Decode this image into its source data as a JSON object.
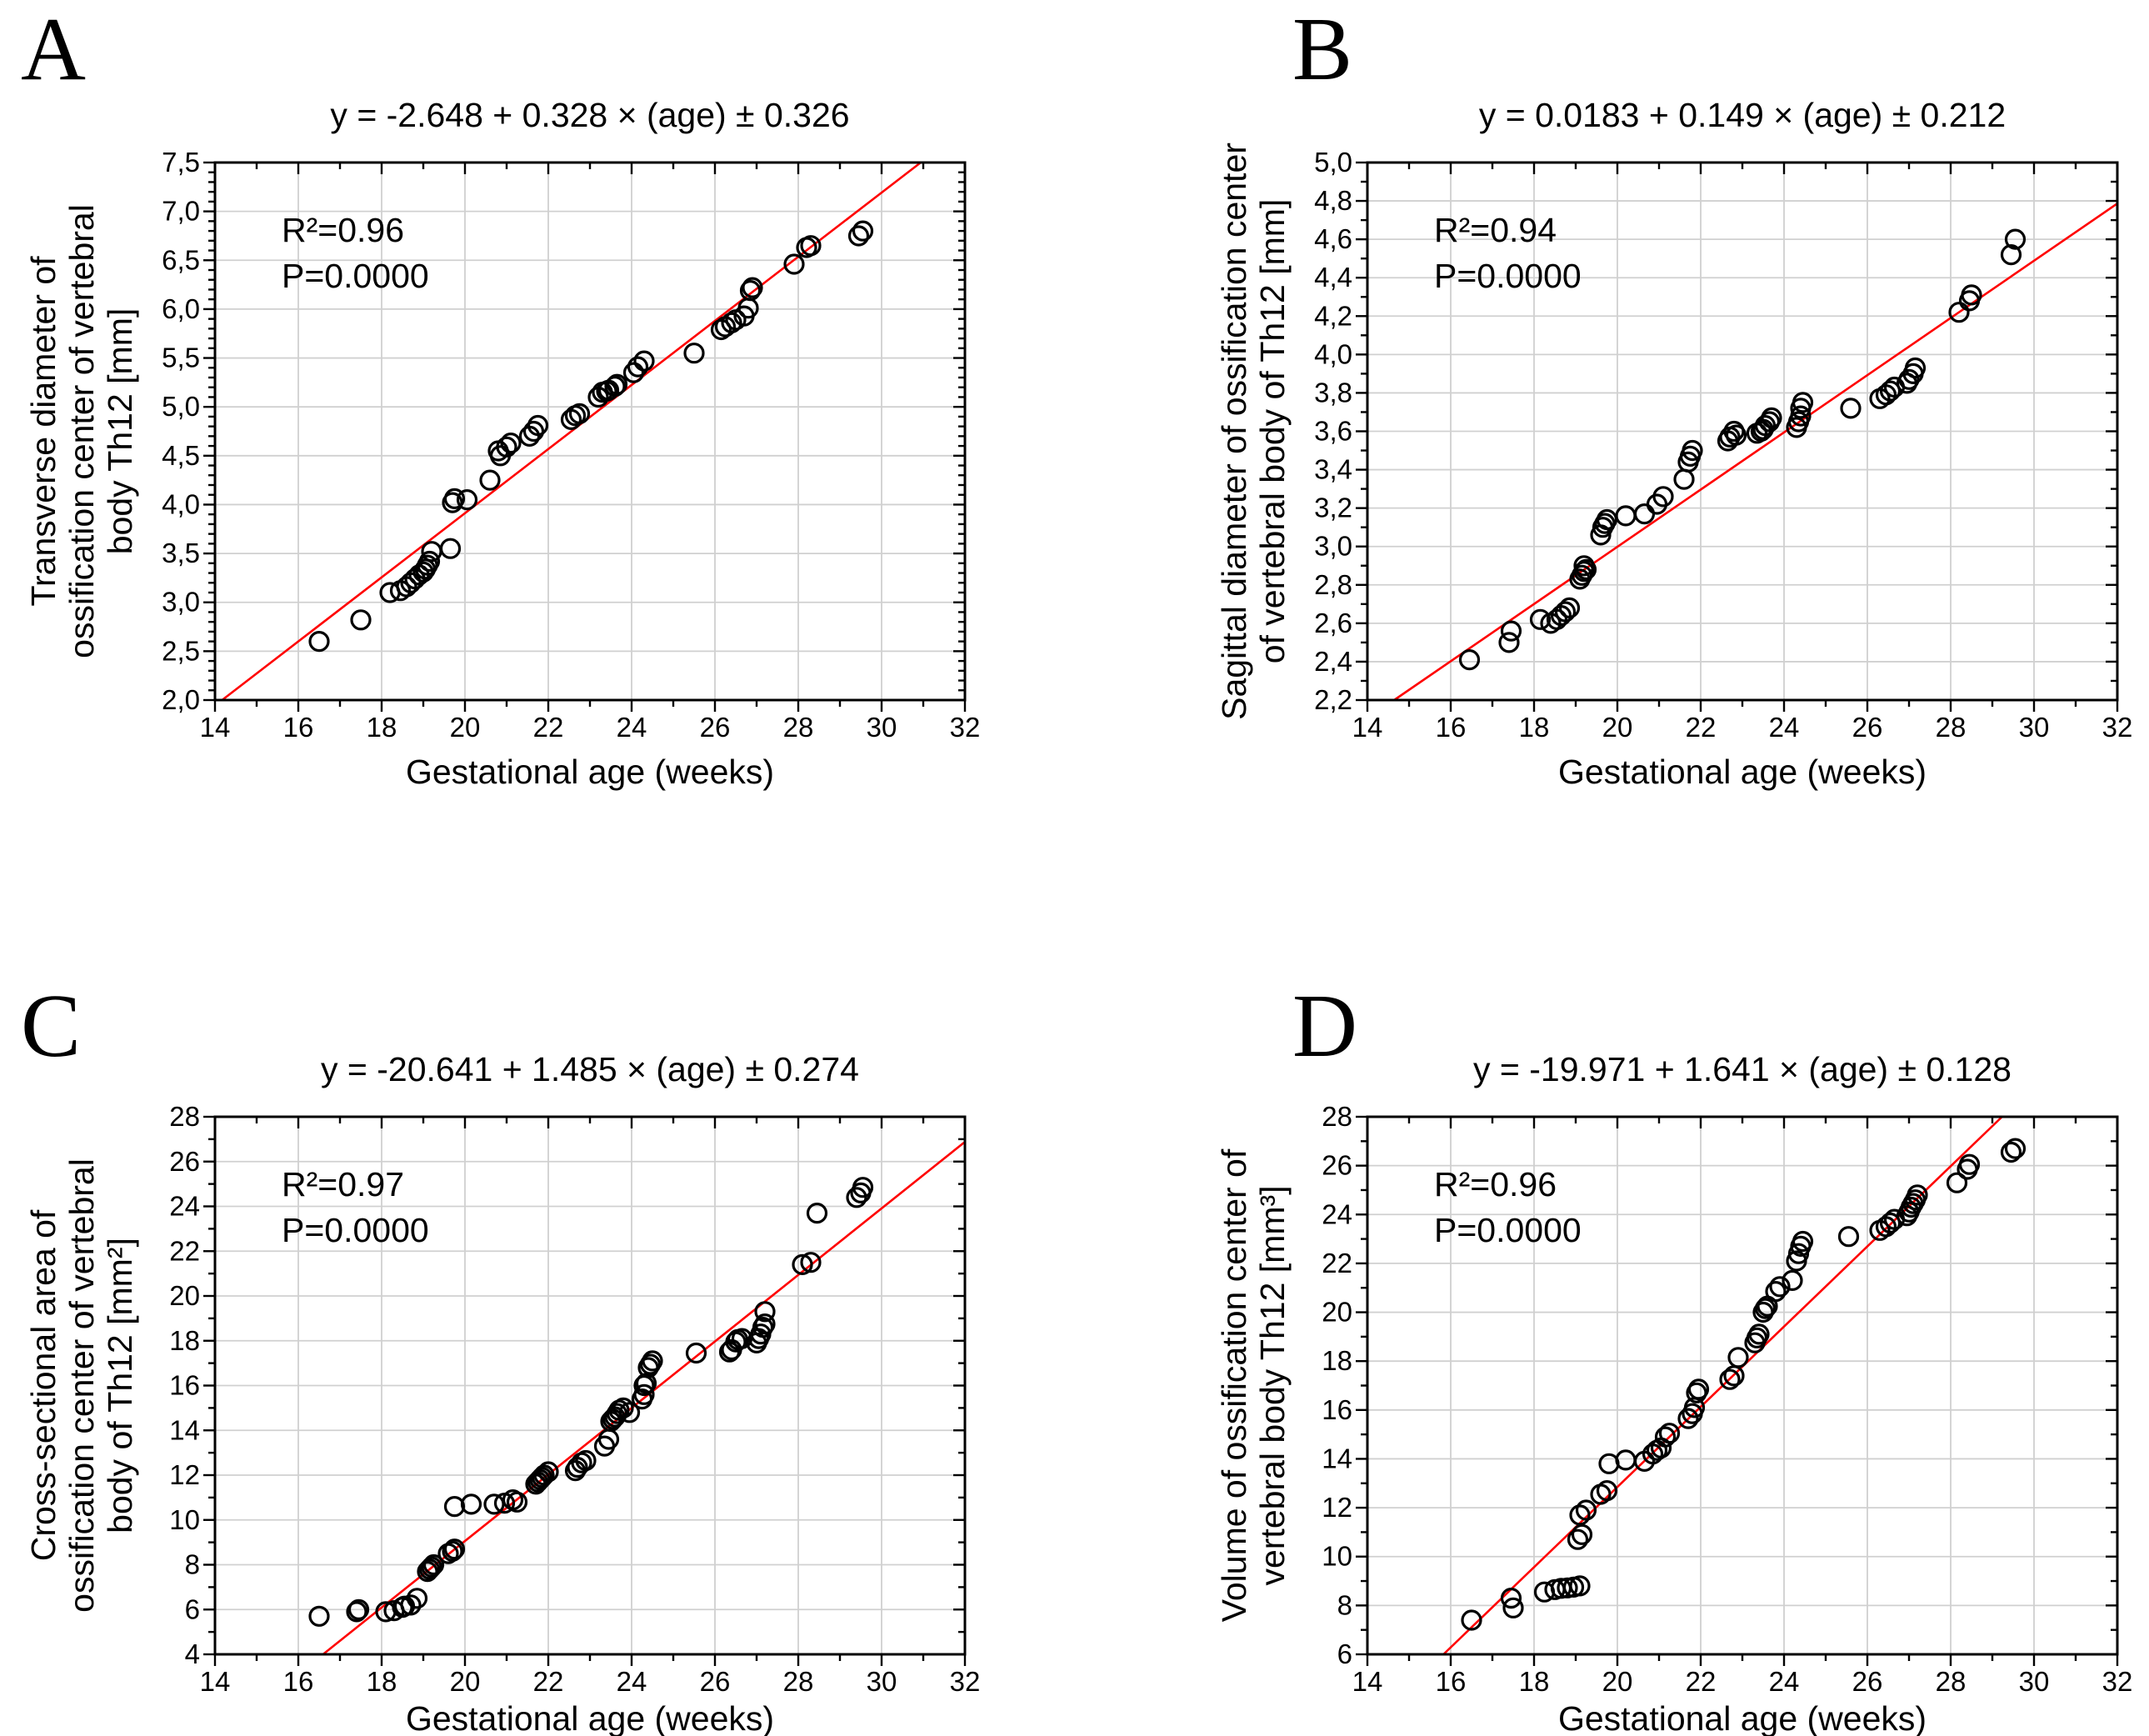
{
  "figure": {
    "background": "#ffffff",
    "panel_order": [
      "A",
      "B",
      "C",
      "D"
    ]
  },
  "colors": {
    "regression_line": "#ff0000",
    "marker_stroke": "#000000",
    "grid": "#d0d0d0",
    "axis": "#000000",
    "text": "#000000"
  },
  "chart_data": [
    {
      "panel_label": "A",
      "type": "scatter",
      "title": "y = -2.648 + 0.328 × (age) ± 0.326",
      "r2_label": "R²=0.96",
      "p_label": "P=0.0000",
      "xlabel": "Gestational age (weeks)",
      "ylabel_lines": [
        "Transverse diameter of",
        "ossification center of vertebral",
        "body Th12 [mm]"
      ],
      "xlim": [
        14,
        32
      ],
      "ylim": [
        2.0,
        7.5
      ],
      "xtick_values": [
        14,
        16,
        18,
        20,
        22,
        24,
        26,
        28,
        30,
        32
      ],
      "xtick_labels": [
        "14",
        "16",
        "18",
        "20",
        "22",
        "24",
        "26",
        "28",
        "30",
        "32"
      ],
      "ytick_values": [
        2.0,
        2.5,
        3.0,
        3.5,
        4.0,
        4.5,
        5.0,
        5.5,
        6.0,
        6.5,
        7.0,
        7.5
      ],
      "ytick_labels": [
        "2,0",
        "2,5",
        "3,0",
        "3,5",
        "4,0",
        "4,5",
        "5,0",
        "5,5",
        "6,0",
        "6,5",
        "7,0",
        "7,5"
      ],
      "x_minor_step": 1,
      "y_minor_step": 0.1,
      "grid": true,
      "legend": null,
      "regression": {
        "intercept": -2.648,
        "slope": 0.328
      },
      "points": [
        [
          16.5,
          2.6
        ],
        [
          17.5,
          2.82
        ],
        [
          18.2,
          3.1
        ],
        [
          18.45,
          3.12
        ],
        [
          18.6,
          3.16
        ],
        [
          18.7,
          3.2
        ],
        [
          18.8,
          3.24
        ],
        [
          18.9,
          3.28
        ],
        [
          19.0,
          3.31
        ],
        [
          19.05,
          3.34
        ],
        [
          19.1,
          3.38
        ],
        [
          19.15,
          3.42
        ],
        [
          19.2,
          3.52
        ],
        [
          19.65,
          3.55
        ],
        [
          19.7,
          4.02
        ],
        [
          19.75,
          4.06
        ],
        [
          20.05,
          4.05
        ],
        [
          20.6,
          4.25
        ],
        [
          20.8,
          4.55
        ],
        [
          20.85,
          4.5
        ],
        [
          21.0,
          4.59
        ],
        [
          21.1,
          4.63
        ],
        [
          21.55,
          4.7
        ],
        [
          21.65,
          4.75
        ],
        [
          21.75,
          4.81
        ],
        [
          22.55,
          4.87
        ],
        [
          22.65,
          4.91
        ],
        [
          22.75,
          4.93
        ],
        [
          23.2,
          5.1
        ],
        [
          23.3,
          5.15
        ],
        [
          23.4,
          5.16
        ],
        [
          23.45,
          5.17
        ],
        [
          23.6,
          5.21
        ],
        [
          23.65,
          5.23
        ],
        [
          24.05,
          5.35
        ],
        [
          24.15,
          5.41
        ],
        [
          24.3,
          5.47
        ],
        [
          25.5,
          5.55
        ],
        [
          26.15,
          5.79
        ],
        [
          26.25,
          5.82
        ],
        [
          26.4,
          5.86
        ],
        [
          26.5,
          5.89
        ],
        [
          26.7,
          5.93
        ],
        [
          26.8,
          6.01
        ],
        [
          26.85,
          6.19
        ],
        [
          26.9,
          6.22
        ],
        [
          27.9,
          6.46
        ],
        [
          28.2,
          6.63
        ],
        [
          28.3,
          6.65
        ],
        [
          29.45,
          6.75
        ],
        [
          29.55,
          6.8
        ]
      ]
    },
    {
      "panel_label": "B",
      "type": "scatter",
      "title": "y = 0.0183 + 0.149 × (age) ± 0.212",
      "r2_label": "R²=0.94",
      "p_label": "P=0.0000",
      "xlabel": "Gestational age (weeks)",
      "ylabel_lines": [
        "Sagittal diameter of ossification center",
        "of vertebral body of Th12 [mm]"
      ],
      "xlim": [
        14,
        32
      ],
      "ylim": [
        2.2,
        5.0
      ],
      "xtick_values": [
        14,
        16,
        18,
        20,
        22,
        24,
        26,
        28,
        30,
        32
      ],
      "xtick_labels": [
        "14",
        "16",
        "18",
        "20",
        "22",
        "24",
        "26",
        "28",
        "30",
        "32"
      ],
      "ytick_values": [
        2.2,
        2.4,
        2.6,
        2.8,
        3.0,
        3.2,
        3.4,
        3.6,
        3.8,
        4.0,
        4.2,
        4.4,
        4.6,
        4.8,
        5.0
      ],
      "ytick_labels": [
        "2,2",
        "2,4",
        "2,6",
        "2,8",
        "3,0",
        "3,2",
        "3,4",
        "3,6",
        "3,8",
        "4,0",
        "4,2",
        "4,4",
        "4,6",
        "4,8",
        "5,0"
      ],
      "x_minor_step": 1,
      "y_minor_step": 0.1,
      "grid": true,
      "legend": null,
      "regression": {
        "intercept": 0.0183,
        "slope": 0.149
      },
      "points": [
        [
          16.45,
          2.41
        ],
        [
          17.4,
          2.5
        ],
        [
          17.45,
          2.56
        ],
        [
          18.15,
          2.62
        ],
        [
          18.4,
          2.6
        ],
        [
          18.55,
          2.62
        ],
        [
          18.65,
          2.64
        ],
        [
          18.75,
          2.66
        ],
        [
          18.85,
          2.68
        ],
        [
          19.1,
          2.83
        ],
        [
          19.15,
          2.85
        ],
        [
          19.2,
          2.87
        ],
        [
          19.2,
          2.9
        ],
        [
          19.25,
          2.88
        ],
        [
          19.6,
          3.06
        ],
        [
          19.65,
          3.1
        ],
        [
          19.7,
          3.12
        ],
        [
          19.75,
          3.14
        ],
        [
          20.2,
          3.16
        ],
        [
          20.65,
          3.17
        ],
        [
          20.95,
          3.22
        ],
        [
          21.1,
          3.26
        ],
        [
          21.6,
          3.35
        ],
        [
          21.7,
          3.44
        ],
        [
          21.75,
          3.47
        ],
        [
          21.8,
          3.5
        ],
        [
          22.65,
          3.55
        ],
        [
          22.7,
          3.57
        ],
        [
          22.8,
          3.6
        ],
        [
          22.85,
          3.58
        ],
        [
          23.35,
          3.59
        ],
        [
          23.45,
          3.6
        ],
        [
          23.5,
          3.61
        ],
        [
          23.55,
          3.63
        ],
        [
          23.65,
          3.65
        ],
        [
          23.7,
          3.67
        ],
        [
          24.3,
          3.62
        ],
        [
          24.35,
          3.65
        ],
        [
          24.4,
          3.68
        ],
        [
          24.4,
          3.72
        ],
        [
          24.45,
          3.75
        ],
        [
          25.6,
          3.72
        ],
        [
          26.3,
          3.77
        ],
        [
          26.45,
          3.79
        ],
        [
          26.55,
          3.81
        ],
        [
          26.65,
          3.83
        ],
        [
          26.95,
          3.85
        ],
        [
          27.0,
          3.87
        ],
        [
          27.1,
          3.9
        ],
        [
          27.15,
          3.93
        ],
        [
          28.2,
          4.22
        ],
        [
          28.45,
          4.28
        ],
        [
          28.5,
          4.31
        ],
        [
          29.45,
          4.52
        ],
        [
          29.55,
          4.6
        ]
      ]
    },
    {
      "panel_label": "C",
      "type": "scatter",
      "title": "y = -20.641 + 1.485 × (age) ± 0.274",
      "r2_label": "R²=0.97",
      "p_label": "P=0.0000",
      "xlabel": "Gestational age (weeks)",
      "ylabel_lines": [
        "Cross-sectional area of",
        "ossification center of vertebral",
        "body of Th12 [mm²]"
      ],
      "xlim": [
        14,
        32
      ],
      "ylim": [
        4,
        28
      ],
      "xtick_values": [
        14,
        16,
        18,
        20,
        22,
        24,
        26,
        28,
        30,
        32
      ],
      "xtick_labels": [
        "14",
        "16",
        "18",
        "20",
        "22",
        "24",
        "26",
        "28",
        "30",
        "32"
      ],
      "ytick_values": [
        4,
        6,
        8,
        10,
        12,
        14,
        16,
        18,
        20,
        22,
        24,
        26,
        28
      ],
      "ytick_labels": [
        "4",
        "6",
        "8",
        "10",
        "12",
        "14",
        "16",
        "18",
        "20",
        "22",
        "24",
        "26",
        "28"
      ],
      "x_minor_step": 1,
      "y_minor_step": 1,
      "grid": true,
      "legend": null,
      "regression": {
        "intercept": -20.641,
        "slope": 1.485
      },
      "points": [
        [
          16.5,
          5.7
        ],
        [
          17.4,
          5.9
        ],
        [
          17.45,
          6.0
        ],
        [
          18.1,
          5.9
        ],
        [
          18.3,
          5.95
        ],
        [
          18.5,
          6.1
        ],
        [
          18.55,
          6.15
        ],
        [
          18.7,
          6.2
        ],
        [
          18.85,
          6.5
        ],
        [
          19.1,
          7.7
        ],
        [
          19.15,
          7.8
        ],
        [
          19.2,
          7.9
        ],
        [
          19.25,
          8.0
        ],
        [
          19.6,
          8.5
        ],
        [
          19.7,
          8.6
        ],
        [
          19.75,
          8.7
        ],
        [
          19.75,
          10.6
        ],
        [
          20.15,
          10.7
        ],
        [
          20.7,
          10.7
        ],
        [
          20.95,
          10.75
        ],
        [
          21.15,
          10.9
        ],
        [
          21.25,
          10.8
        ],
        [
          21.7,
          11.6
        ],
        [
          21.75,
          11.7
        ],
        [
          21.8,
          11.8
        ],
        [
          21.85,
          11.9
        ],
        [
          21.9,
          12.0
        ],
        [
          22.0,
          12.15
        ],
        [
          22.65,
          12.2
        ],
        [
          22.7,
          12.35
        ],
        [
          22.8,
          12.55
        ],
        [
          22.9,
          12.65
        ],
        [
          23.35,
          13.3
        ],
        [
          23.45,
          13.6
        ],
        [
          23.5,
          14.4
        ],
        [
          23.55,
          14.5
        ],
        [
          23.6,
          14.6
        ],
        [
          23.65,
          14.75
        ],
        [
          23.7,
          14.9
        ],
        [
          23.8,
          15.0
        ],
        [
          23.95,
          14.8
        ],
        [
          24.25,
          15.4
        ],
        [
          24.3,
          15.6
        ],
        [
          24.3,
          16.0
        ],
        [
          24.35,
          16.1
        ],
        [
          24.4,
          16.8
        ],
        [
          24.45,
          16.95
        ],
        [
          24.5,
          17.1
        ],
        [
          25.55,
          17.45
        ],
        [
          26.35,
          17.5
        ],
        [
          26.4,
          17.6
        ],
        [
          26.5,
          17.95
        ],
        [
          26.55,
          18.05
        ],
        [
          26.65,
          18.1
        ],
        [
          27.0,
          17.9
        ],
        [
          27.05,
          18.1
        ],
        [
          27.1,
          18.3
        ],
        [
          27.15,
          18.6
        ],
        [
          27.2,
          18.75
        ],
        [
          27.2,
          19.3
        ],
        [
          28.1,
          21.4
        ],
        [
          28.3,
          21.5
        ],
        [
          28.45,
          23.7
        ],
        [
          29.4,
          24.4
        ],
        [
          29.5,
          24.6
        ],
        [
          29.55,
          24.85
        ]
      ]
    },
    {
      "panel_label": "D",
      "type": "scatter",
      "title": "y = -19.971 + 1.641 × (age) ± 0.128",
      "r2_label": "R²=0.96",
      "p_label": "P=0.0000",
      "xlabel": "Gestational age (weeks)",
      "ylabel_lines": [
        "Volume of ossification center of",
        "vertebral body Th12 [mm³]"
      ],
      "xlim": [
        14,
        32
      ],
      "ylim": [
        6,
        28
      ],
      "xtick_values": [
        14,
        16,
        18,
        20,
        22,
        24,
        26,
        28,
        30,
        32
      ],
      "xtick_labels": [
        "14",
        "16",
        "18",
        "20",
        "22",
        "24",
        "26",
        "28",
        "30",
        "32"
      ],
      "ytick_values": [
        6,
        8,
        10,
        12,
        14,
        16,
        18,
        20,
        22,
        24,
        26,
        28
      ],
      "ytick_labels": [
        "6",
        "8",
        "10",
        "12",
        "14",
        "16",
        "18",
        "20",
        "22",
        "24",
        "26",
        "28"
      ],
      "x_minor_step": 1,
      "y_minor_step": 1,
      "grid": true,
      "legend": null,
      "regression": {
        "intercept": -19.971,
        "slope": 1.641
      },
      "points": [
        [
          16.5,
          7.4
        ],
        [
          17.45,
          8.3
        ],
        [
          17.5,
          7.9
        ],
        [
          18.25,
          8.55
        ],
        [
          18.5,
          8.65
        ],
        [
          18.65,
          8.7
        ],
        [
          18.8,
          8.72
        ],
        [
          18.95,
          8.75
        ],
        [
          19.1,
          8.8
        ],
        [
          19.05,
          10.7
        ],
        [
          19.15,
          10.9
        ],
        [
          19.1,
          11.7
        ],
        [
          19.25,
          11.9
        ],
        [
          19.6,
          12.55
        ],
        [
          19.75,
          12.7
        ],
        [
          19.8,
          13.8
        ],
        [
          20.2,
          13.95
        ],
        [
          20.65,
          13.9
        ],
        [
          20.85,
          14.2
        ],
        [
          20.95,
          14.35
        ],
        [
          21.05,
          14.45
        ],
        [
          21.15,
          14.9
        ],
        [
          21.25,
          15.05
        ],
        [
          21.7,
          15.65
        ],
        [
          21.8,
          15.85
        ],
        [
          21.85,
          16.1
        ],
        [
          21.9,
          16.7
        ],
        [
          21.95,
          16.85
        ],
        [
          22.7,
          17.25
        ],
        [
          22.8,
          17.4
        ],
        [
          22.9,
          18.15
        ],
        [
          23.3,
          18.75
        ],
        [
          23.35,
          18.95
        ],
        [
          23.4,
          19.1
        ],
        [
          23.5,
          20.0
        ],
        [
          23.55,
          20.15
        ],
        [
          23.6,
          20.25
        ],
        [
          23.8,
          20.85
        ],
        [
          23.9,
          21.05
        ],
        [
          24.2,
          21.3
        ],
        [
          24.3,
          22.1
        ],
        [
          24.35,
          22.4
        ],
        [
          24.4,
          22.7
        ],
        [
          24.45,
          22.9
        ],
        [
          25.55,
          23.1
        ],
        [
          26.3,
          23.35
        ],
        [
          26.45,
          23.5
        ],
        [
          26.55,
          23.65
        ],
        [
          26.65,
          23.8
        ],
        [
          26.95,
          23.95
        ],
        [
          27.0,
          24.1
        ],
        [
          27.05,
          24.3
        ],
        [
          27.1,
          24.45
        ],
        [
          27.15,
          24.6
        ],
        [
          27.2,
          24.8
        ],
        [
          28.15,
          25.3
        ],
        [
          28.4,
          25.85
        ],
        [
          28.45,
          26.05
        ],
        [
          29.45,
          26.55
        ],
        [
          29.55,
          26.7
        ]
      ]
    }
  ]
}
